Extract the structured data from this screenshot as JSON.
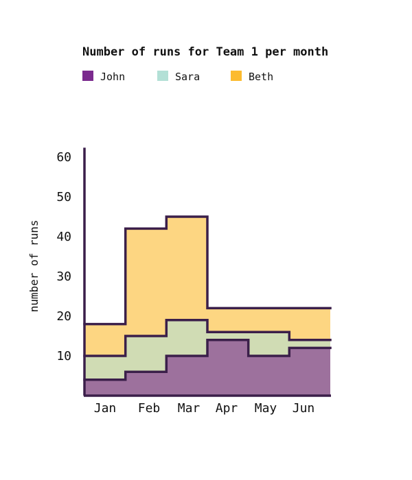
{
  "chart_data": {
    "type": "area",
    "title": "Number of runs for Team 1 per month",
    "ylabel": "number of runs",
    "xlabel": "",
    "categories": [
      "Jan",
      "Feb",
      "Mar",
      "Apr",
      "May",
      "Jun"
    ],
    "series": [
      {
        "name": "John",
        "values": [
          4,
          6,
          10,
          14,
          10,
          12
        ],
        "color": "#7b2a8e"
      },
      {
        "name": "Sara",
        "values": [
          6,
          9,
          9,
          2,
          6,
          2
        ],
        "color": "#b3e0d6"
      },
      {
        "name": "Beth",
        "values": [
          8,
          27,
          26,
          6,
          6,
          8
        ],
        "color": "#fcbb2f"
      }
    ],
    "line_color": "#3b1f4a",
    "yticks": [
      10,
      20,
      30,
      40,
      50,
      60
    ],
    "ylim": [
      0,
      62
    ],
    "stacked": true,
    "step": true,
    "grid": false,
    "legend_position": "top-left"
  }
}
